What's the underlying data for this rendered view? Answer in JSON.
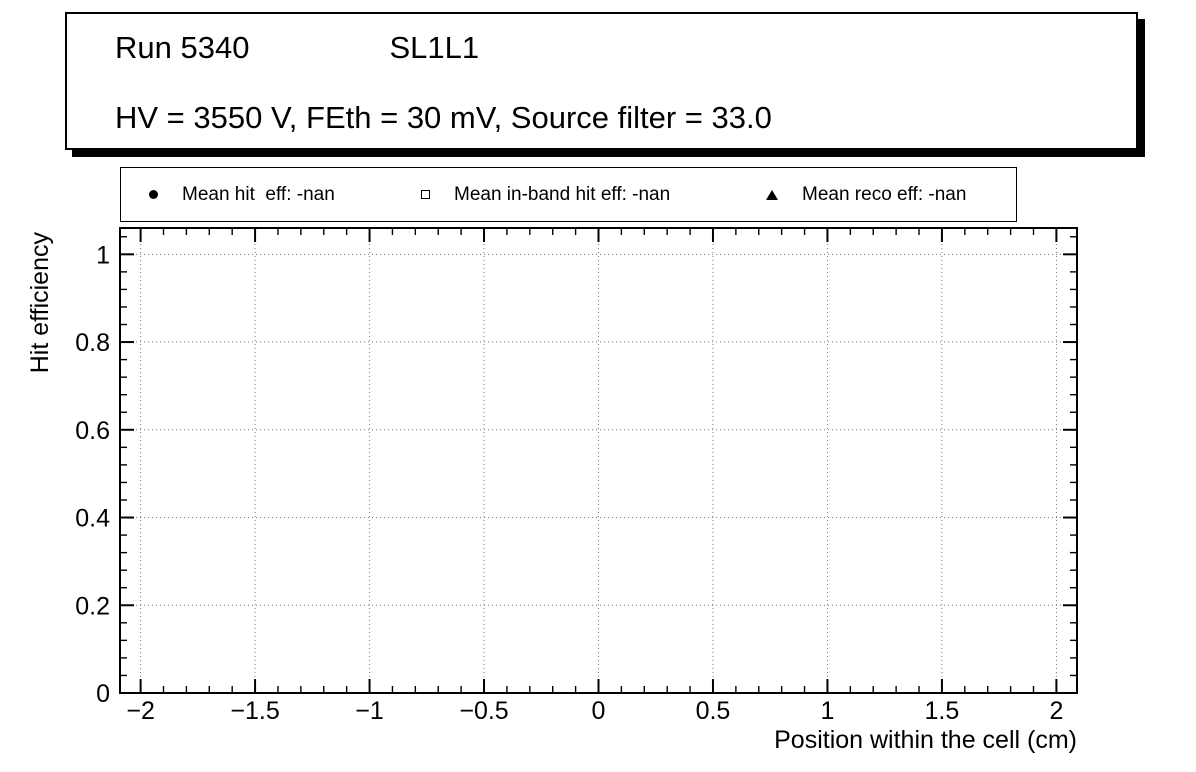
{
  "title_box": {
    "run": "Run 5340",
    "chamber": "SL1L1",
    "conditions": "HV = 3550 V, FEth = 30 mV, Source filter = 33.0"
  },
  "colors": {
    "background": "#ffffff",
    "foreground": "#000000",
    "grid": "#777777"
  },
  "chart_data": {
    "type": "scatter",
    "title": "Run 5340 SL1L1 — HV = 3550 V, FEth = 30 mV, Source filter = 33.0",
    "xlabel": "Position within the cell (cm)",
    "ylabel": "Hit efficiency",
    "xlim": [
      -2.09,
      2.09
    ],
    "ylim": [
      0,
      1.06
    ],
    "grid": true,
    "legend_position": "top",
    "x_major_ticks": [
      -2,
      -1.5,
      -1,
      -0.5,
      0,
      0.5,
      1,
      1.5,
      2
    ],
    "x_tick_labels": [
      "−2",
      "−1.5",
      "−1",
      "−0.5",
      "0",
      "0.5",
      "1",
      "1.5",
      "2"
    ],
    "x_minor_step": 0.1,
    "y_major_ticks": [
      0,
      0.2,
      0.4,
      0.6,
      0.8,
      1
    ],
    "y_tick_labels": [
      "0",
      "0.2",
      "0.4",
      "0.6",
      "0.8",
      "1"
    ],
    "y_minor_step": 0.04,
    "series": [
      {
        "name": "Mean hit  eff: -nan",
        "marker": "filled-circle",
        "points": []
      },
      {
        "name": "Mean in-band hit eff: -nan",
        "marker": "open-square",
        "points": []
      },
      {
        "name": "Mean reco eff: -nan",
        "marker": "filled-triangle",
        "points": []
      }
    ]
  }
}
